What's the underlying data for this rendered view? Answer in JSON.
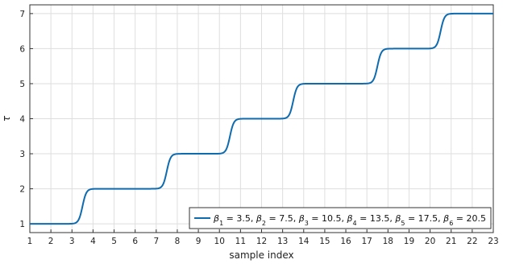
{
  "chart_data": {
    "type": "line",
    "xlabel": "sample index",
    "ylabel": "τ",
    "xlim": [
      1,
      23
    ],
    "ylim": [
      0.75,
      7.25
    ],
    "xticks": [
      1,
      2,
      3,
      4,
      5,
      6,
      7,
      8,
      9,
      10,
      11,
      12,
      13,
      14,
      15,
      16,
      17,
      18,
      19,
      20,
      21,
      22,
      23
    ],
    "yticks": [
      1,
      2,
      3,
      4,
      5,
      6,
      7
    ],
    "grid": true,
    "legend_position": "bottom-right",
    "line_color": "#0f6bb0",
    "series": [
      {
        "label_parts": [
          {
            "sym": "β",
            "sub": "1",
            "val": " = 3.5, "
          },
          {
            "sym": "β",
            "sub": "2",
            "val": " = 7.5, "
          },
          {
            "sym": "β",
            "sub": "3",
            "val": " = 10.5, "
          },
          {
            "sym": "β",
            "sub": "4",
            "val": " = 13.5, "
          },
          {
            "sym": "β",
            "sub": "5",
            "val": " = 17.5, "
          },
          {
            "sym": "β",
            "sub": "6",
            "val": " = 20.5"
          }
        ],
        "betas": [
          3.5,
          7.5,
          10.5,
          13.5,
          17.5,
          20.5
        ],
        "base_value": 1,
        "step_height": 1,
        "transition_sharpness": 11
      }
    ]
  }
}
